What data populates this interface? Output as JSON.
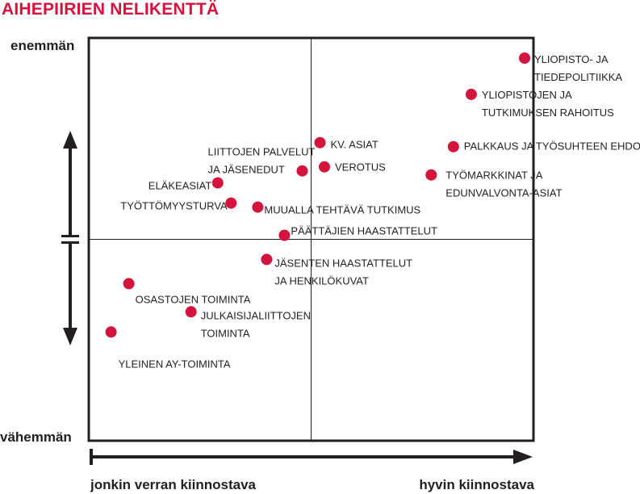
{
  "title": "AIHEPIIRIEN NELIKENTTÄ",
  "y_top_label": "enemmän",
  "y_bottom_label": "vähemmän",
  "x_left_label": "jonkin verran kiinnostava",
  "x_right_label": "hyvin kiinnostava",
  "colors": {
    "accent": "#d4143c",
    "ink": "#231f20"
  },
  "chart_data": {
    "type": "scatter",
    "xlim": [
      0,
      100
    ],
    "ylim": [
      0,
      100
    ],
    "grid": false,
    "points": [
      {
        "label": [
          "YLIOPISTO- JA",
          "TIEDEPOLITIIKKA"
        ],
        "x": 98,
        "y": 95
      },
      {
        "label": [
          "YLIOPISTOJEN JA",
          "TUTKIMUKSEN RAHOITUS"
        ],
        "x": 86,
        "y": 86
      },
      {
        "label": [
          "PALKKAUS JA TYÖSUHTEEN EHDOT"
        ],
        "x": 82,
        "y": 73
      },
      {
        "label": [
          "TYÖMARKKINAT JA",
          "EDUNVALVONTA-ASIAT"
        ],
        "x": 77,
        "y": 66
      },
      {
        "label": [
          "KV. ASIAT"
        ],
        "x": 52,
        "y": 74
      },
      {
        "label": [
          "VEROTUS"
        ],
        "x": 53,
        "y": 68
      },
      {
        "label": [
          "LIITTOJEN PALVELUT",
          "JA JÄSENEDUT"
        ],
        "x": 48,
        "y": 67
      },
      {
        "label": [
          "ELÄKEASIAT"
        ],
        "x": 29,
        "y": 64
      },
      {
        "label": [
          "TYÖTTÖMYYSTURVA"
        ],
        "x": 32,
        "y": 59
      },
      {
        "label": [
          "MUUALLA TEHTÄVÄ TUTKIMUS"
        ],
        "x": 38,
        "y": 58
      },
      {
        "label": [
          "PÄÄTTÄJIEN HAASTATTELUT"
        ],
        "x": 44,
        "y": 51
      },
      {
        "label": [
          "JÄSENTEN HAASTATTELUT",
          "JA HENKILÖKUVAT"
        ],
        "x": 40,
        "y": 45
      },
      {
        "label": [
          "OSASTOJEN TOIMINTA"
        ],
        "x": 9,
        "y": 39
      },
      {
        "label": [
          "JULKAISIJALIITTOJEN",
          "TOIMINTA"
        ],
        "x": 23,
        "y": 32
      },
      {
        "label": [
          "YLEINEN AY-TOIMINTA"
        ],
        "x": 5,
        "y": 27
      }
    ]
  }
}
